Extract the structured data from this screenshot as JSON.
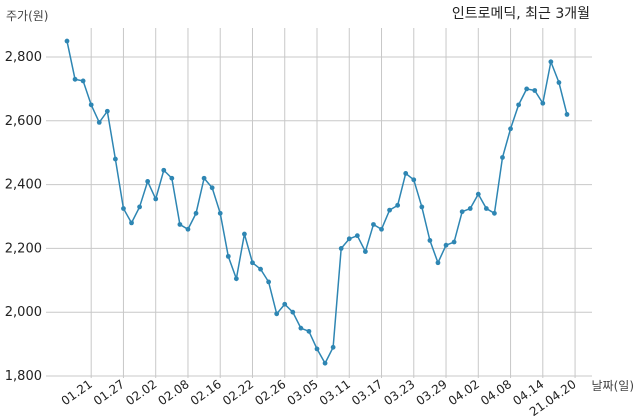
{
  "chart_data": {
    "type": "line",
    "title": "인트로메딕, 최근 3개월",
    "xlabel": "날짜(일)",
    "ylabel": "주가(원)",
    "ylim": [
      1800,
      2900
    ],
    "yticks": [
      1800,
      2000,
      2200,
      2400,
      2600,
      2800
    ],
    "ytick_labels": [
      "1,800",
      "2,000",
      "2,200",
      "2,400",
      "2,600",
      "2,800"
    ],
    "xtick_labels": [
      "01.21",
      "01.27",
      "02.02",
      "02.08",
      "02.16",
      "02.22",
      "02.26",
      "03.05",
      "03.11",
      "03.17",
      "03.23",
      "03.29",
      "04.02",
      "04.08",
      "04.14",
      "21.04.20"
    ],
    "xtick_positions": [
      3,
      7,
      11,
      15,
      19,
      23,
      27,
      31,
      35,
      39,
      43,
      47,
      51,
      55,
      59,
      63
    ],
    "grid": true,
    "line_color": "#2e86b3",
    "series": [
      {
        "values": [
          2850,
          2730,
          2725,
          2650,
          2595,
          2630,
          2480,
          2325,
          2280,
          2330,
          2410,
          2355,
          2445,
          2420,
          2275,
          2260,
          2310,
          2420,
          2390,
          2310,
          2175,
          2105,
          2245,
          2155,
          2135,
          2095,
          1995,
          2025,
          2000,
          1950,
          1940,
          1885,
          1840,
          1890,
          2200,
          2230,
          2240,
          2190,
          2275,
          2260,
          2320,
          2335,
          2435,
          2415,
          2330,
          2225,
          2155,
          2210,
          2220,
          2315,
          2325,
          2370,
          2325,
          2310,
          2485,
          2575,
          2650,
          2700,
          2695,
          2655,
          2785,
          2720,
          2620
        ]
      }
    ]
  }
}
